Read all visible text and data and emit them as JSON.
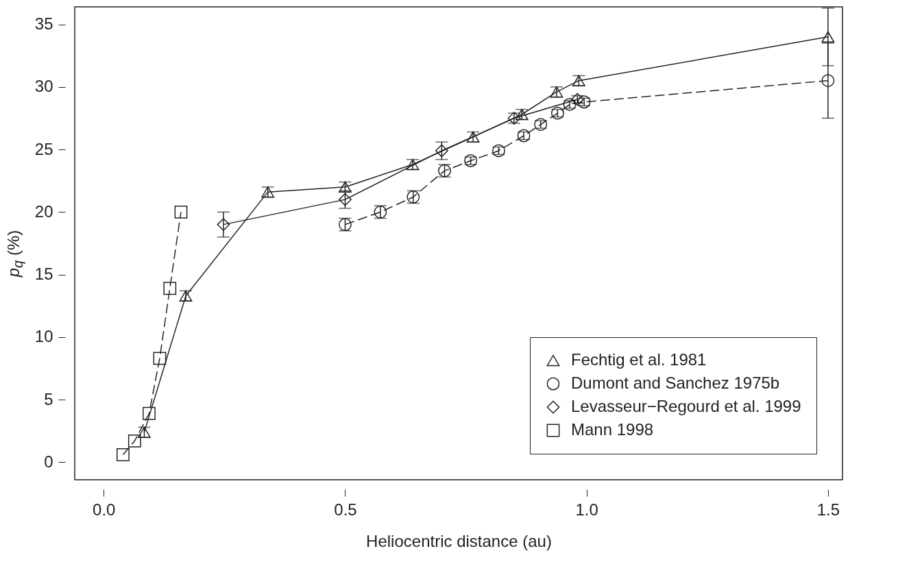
{
  "chart_data": {
    "type": "line",
    "xlabel": "Heliocentric distance (au)",
    "ylabel": "p$_{q}$ (%)",
    "xlim": [
      -0.06,
      1.53
    ],
    "ylim": [
      -1.4,
      36.4
    ],
    "xticks": [
      {
        "value": 0,
        "label": "0.0"
      },
      {
        "value": 0.5,
        "label": "0.5"
      },
      {
        "value": 1,
        "label": "1.0"
      },
      {
        "value": 1.5,
        "label": "1.5"
      }
    ],
    "yticks": [
      0,
      5,
      10,
      15,
      20,
      25,
      30,
      35
    ],
    "grid": false,
    "legend": "bottom right",
    "series": [
      {
        "name": "Fechtig et al. 1981",
        "color": "#222222",
        "marker": "triangle",
        "line_style": "solid",
        "x": [
          0.084,
          0.17,
          0.34,
          0.5,
          0.64,
          0.765,
          0.866,
          0.938,
          0.984,
          1.5
        ],
        "values": [
          2.4,
          13.3,
          21.6,
          22.0,
          23.8,
          26.0,
          27.8,
          29.6,
          30.5,
          34.0
        ],
        "errors": [
          0.4,
          0.4,
          0.4,
          0.4,
          0.4,
          0.4,
          0.4,
          0.4,
          0.4,
          2.3
        ]
      },
      {
        "name": "Dumont and Sanchez 1975b",
        "color": "#222222",
        "marker": "circle",
        "line_style": "dashed",
        "x": [
          0.5,
          0.573,
          0.641,
          0.706,
          0.76,
          0.818,
          0.87,
          0.905,
          0.94,
          0.965,
          0.995,
          1.5
        ],
        "values": [
          19.0,
          20.0,
          21.2,
          23.3,
          24.1,
          24.9,
          26.1,
          27.0,
          27.9,
          28.6,
          28.8,
          30.5
        ],
        "errors": [
          0.5,
          0.5,
          0.5,
          0.5,
          0.3,
          0.3,
          0.3,
          0.3,
          0.3,
          0.3,
          0.3,
          3.0
        ]
      },
      {
        "name": "Levasseur−Regourd et al. 1999",
        "color": "#222222",
        "marker": "diamond",
        "line_style": "solid",
        "x": [
          0.248,
          0.5,
          0.7,
          0.85,
          0.981
        ],
        "values": [
          19.0,
          21.0,
          24.9,
          27.5,
          29.0
        ],
        "errors": [
          1.0,
          0.7,
          0.7,
          0.4,
          0.3
        ]
      },
      {
        "name": "Mann 1998",
        "color": "#222222",
        "marker": "square",
        "line_style": "dashed",
        "x": [
          0.04,
          0.064,
          0.094,
          0.116,
          0.137,
          0.16
        ],
        "values": [
          0.6,
          1.7,
          3.9,
          8.3,
          13.9,
          20.0
        ]
      }
    ]
  }
}
